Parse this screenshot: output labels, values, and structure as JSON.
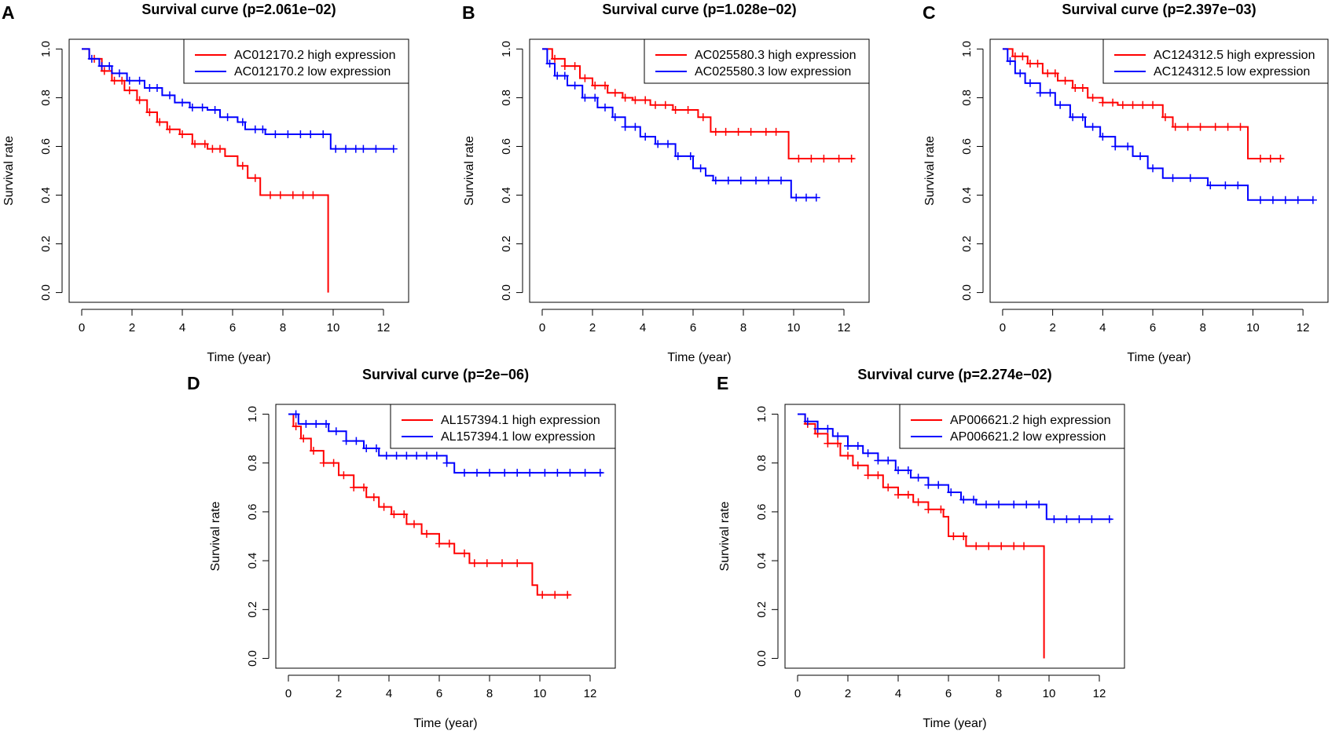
{
  "figure": {
    "colors": {
      "high": "#ff0000",
      "low": "#0000ff",
      "axis": "#000000"
    }
  },
  "chart_data": [
    {
      "type": "line",
      "panel": "A",
      "title": "Survival curve (p=2.061e−02)",
      "xlabel": "Time (year)",
      "ylabel": "Survival rate",
      "xlim": [
        0,
        12.5
      ],
      "ylim": [
        0,
        1
      ],
      "xticks": [
        0,
        2,
        4,
        6,
        8,
        10,
        12
      ],
      "yticks": [
        0.0,
        0.2,
        0.4,
        0.6,
        0.8,
        1.0
      ],
      "xtick_labels": [
        "0",
        "2",
        "4",
        "6",
        "8",
        "10",
        "12"
      ],
      "ytick_labels": [
        "0.0",
        "0.2",
        "0.4",
        "0.6",
        "0.8",
        "1.0"
      ],
      "legend": "top-right",
      "series": [
        {
          "name": "AC012170.2 high expression",
          "color": "#ff0000",
          "x": [
            0,
            0.3,
            0.8,
            1.2,
            1.7,
            2.2,
            2.6,
            3.0,
            3.4,
            3.9,
            4.4,
            5.0,
            5.7,
            6.2,
            6.6,
            7.1,
            9.8,
            9.8
          ],
          "y": [
            1.0,
            0.96,
            0.91,
            0.87,
            0.83,
            0.79,
            0.74,
            0.7,
            0.67,
            0.65,
            0.61,
            0.59,
            0.56,
            0.52,
            0.47,
            0.4,
            0.4,
            0.0
          ],
          "end": 9.8,
          "censor_x": [
            0.5,
            0.9,
            1.3,
            1.6,
            1.9,
            2.3,
            2.7,
            3.1,
            3.5,
            4.0,
            4.5,
            4.9,
            5.2,
            5.5,
            6.4,
            6.9,
            7.5,
            7.9,
            8.4,
            8.8,
            9.2
          ]
        },
        {
          "name": "AC012170.2 low expression",
          "color": "#0000ff",
          "x": [
            0,
            0.3,
            0.7,
            1.2,
            1.8,
            2.5,
            3.2,
            3.7,
            4.3,
            5.0,
            5.5,
            6.2,
            6.5,
            7.3,
            9.9
          ],
          "y": [
            1.0,
            0.96,
            0.93,
            0.9,
            0.87,
            0.84,
            0.81,
            0.78,
            0.76,
            0.75,
            0.72,
            0.7,
            0.67,
            0.65,
            0.59
          ],
          "end": 12.4,
          "censor_x": [
            0.4,
            0.8,
            1.1,
            1.5,
            1.9,
            2.3,
            2.7,
            3.0,
            3.5,
            4.0,
            4.4,
            4.8,
            5.3,
            5.8,
            6.4,
            6.9,
            7.2,
            7.7,
            8.2,
            8.7,
            9.1,
            9.6,
            10.1,
            10.5,
            10.9,
            11.2,
            11.7,
            12.4
          ]
        }
      ]
    },
    {
      "type": "line",
      "panel": "B",
      "title": "Survival curve (p=1.028e−02)",
      "xlabel": "Time (year)",
      "ylabel": "Survival rate",
      "xlim": [
        0,
        12.5
      ],
      "ylim": [
        0,
        1
      ],
      "xticks": [
        0,
        2,
        4,
        6,
        8,
        10,
        12
      ],
      "yticks": [
        0.0,
        0.2,
        0.4,
        0.6,
        0.8,
        1.0
      ],
      "xtick_labels": [
        "0",
        "2",
        "4",
        "6",
        "8",
        "10",
        "12"
      ],
      "ytick_labels": [
        "0.0",
        "0.2",
        "0.4",
        "0.6",
        "0.8",
        "1.0"
      ],
      "legend": "top-right",
      "series": [
        {
          "name": "AC025580.3 high expression",
          "color": "#ff0000",
          "x": [
            0,
            0.4,
            0.9,
            1.5,
            2.0,
            2.6,
            3.2,
            3.6,
            4.3,
            5.2,
            6.2,
            6.7,
            9.8
          ],
          "y": [
            1.0,
            0.96,
            0.93,
            0.88,
            0.85,
            0.82,
            0.8,
            0.79,
            0.77,
            0.75,
            0.72,
            0.66,
            0.55
          ],
          "end": 12.4,
          "censor_x": [
            0.5,
            0.9,
            1.3,
            1.7,
            2.1,
            2.5,
            2.9,
            3.3,
            3.7,
            4.1,
            4.5,
            4.9,
            5.3,
            5.8,
            6.4,
            6.9,
            7.3,
            7.8,
            8.3,
            8.9,
            9.3,
            10.2,
            10.7,
            11.2,
            11.8,
            12.3
          ]
        },
        {
          "name": "AC025580.3 low expression",
          "color": "#0000ff",
          "x": [
            0,
            0.2,
            0.5,
            1.0,
            1.6,
            2.2,
            2.8,
            3.3,
            3.9,
            4.5,
            5.3,
            6.0,
            6.5,
            6.8,
            9.9
          ],
          "y": [
            1.0,
            0.94,
            0.89,
            0.85,
            0.8,
            0.76,
            0.72,
            0.68,
            0.64,
            0.61,
            0.56,
            0.51,
            0.48,
            0.46,
            0.39
          ],
          "end": 10.9,
          "censor_x": [
            0.3,
            0.6,
            0.9,
            1.3,
            1.7,
            2.1,
            2.5,
            2.9,
            3.3,
            3.7,
            4.1,
            4.6,
            5.0,
            5.4,
            5.9,
            6.3,
            6.9,
            7.4,
            7.9,
            8.5,
            9.0,
            9.5,
            10.1,
            10.5,
            10.9
          ]
        }
      ]
    },
    {
      "type": "line",
      "panel": "C",
      "title": "Survival curve (p=2.397e−03)",
      "xlabel": "Time (year)",
      "ylabel": "Survival rate",
      "xlim": [
        0,
        12.5
      ],
      "ylim": [
        0,
        1
      ],
      "xticks": [
        0,
        2,
        4,
        6,
        8,
        10,
        12
      ],
      "yticks": [
        0.0,
        0.2,
        0.4,
        0.6,
        0.8,
        1.0
      ],
      "xtick_labels": [
        "0",
        "2",
        "4",
        "6",
        "8",
        "10",
        "12"
      ],
      "ytick_labels": [
        "0.0",
        "0.2",
        "0.4",
        "0.6",
        "0.8",
        "1.0"
      ],
      "legend": "top-right",
      "series": [
        {
          "name": "AC124312.5 high expression",
          "color": "#ff0000",
          "x": [
            0,
            0.4,
            1.0,
            1.6,
            2.2,
            2.8,
            3.4,
            4.0,
            4.6,
            6.4,
            6.8,
            9.8
          ],
          "y": [
            1.0,
            0.97,
            0.94,
            0.9,
            0.87,
            0.84,
            0.8,
            0.78,
            0.77,
            0.72,
            0.68,
            0.55
          ],
          "end": 11.2,
          "censor_x": [
            0.5,
            0.8,
            1.1,
            1.4,
            1.8,
            2.1,
            2.5,
            2.9,
            3.2,
            3.6,
            4.0,
            4.4,
            4.8,
            5.2,
            5.6,
            6.0,
            6.5,
            6.9,
            7.4,
            7.9,
            8.5,
            9.0,
            9.5,
            10.3,
            10.7,
            11.1
          ]
        },
        {
          "name": "AC124312.5 low expression",
          "color": "#0000ff",
          "x": [
            0,
            0.2,
            0.5,
            0.9,
            1.5,
            2.1,
            2.7,
            3.3,
            3.9,
            4.5,
            5.2,
            5.8,
            6.4,
            8.2,
            9.8
          ],
          "y": [
            1.0,
            0.95,
            0.9,
            0.86,
            0.82,
            0.77,
            0.72,
            0.68,
            0.64,
            0.6,
            0.56,
            0.51,
            0.47,
            0.44,
            0.38
          ],
          "end": 12.4,
          "censor_x": [
            0.3,
            0.7,
            1.1,
            1.5,
            1.9,
            2.3,
            2.8,
            3.2,
            3.6,
            4.0,
            4.5,
            5.0,
            5.5,
            6.0,
            6.8,
            7.5,
            8.3,
            8.9,
            9.4,
            10.3,
            10.8,
            11.3,
            11.8,
            12.4
          ]
        }
      ]
    },
    {
      "type": "line",
      "panel": "D",
      "title": "Survival curve (p=2e−06)",
      "xlabel": "Time (year)",
      "ylabel": "Survival rate",
      "xlim": [
        0,
        12.5
      ],
      "ylim": [
        0,
        1
      ],
      "xticks": [
        0,
        2,
        4,
        6,
        8,
        10,
        12
      ],
      "yticks": [
        0.0,
        0.2,
        0.4,
        0.6,
        0.8,
        1.0
      ],
      "xtick_labels": [
        "0",
        "2",
        "4",
        "6",
        "8",
        "10",
        "12"
      ],
      "ytick_labels": [
        "0.0",
        "0.2",
        "0.4",
        "0.6",
        "0.8",
        "1.0"
      ],
      "legend": "top-right",
      "series": [
        {
          "name": "AL157394.1 high expression",
          "color": "#ff0000",
          "x": [
            0,
            0.2,
            0.5,
            0.9,
            1.4,
            2.0,
            2.6,
            3.1,
            3.6,
            4.1,
            4.7,
            5.3,
            6.0,
            6.6,
            7.2,
            9.7,
            9.9
          ],
          "y": [
            1.0,
            0.95,
            0.9,
            0.85,
            0.8,
            0.75,
            0.7,
            0.66,
            0.62,
            0.59,
            0.55,
            0.51,
            0.47,
            0.43,
            0.39,
            0.3,
            0.26
          ],
          "end": 11.2,
          "censor_x": [
            0.3,
            0.6,
            1.0,
            1.4,
            1.8,
            2.2,
            2.6,
            3.0,
            3.4,
            3.8,
            4.2,
            4.6,
            5.0,
            5.5,
            6.0,
            6.4,
            7.0,
            7.4,
            7.9,
            8.5,
            9.1,
            10.1,
            10.6,
            11.1
          ]
        },
        {
          "name": "AL157394.1 low expression",
          "color": "#0000ff",
          "x": [
            0,
            0.4,
            1.6,
            2.3,
            3.0,
            3.6,
            6.3,
            6.6
          ],
          "y": [
            1.0,
            0.96,
            0.93,
            0.89,
            0.86,
            0.83,
            0.8,
            0.76
          ],
          "end": 12.5,
          "censor_x": [
            0.3,
            0.7,
            1.1,
            1.5,
            1.9,
            2.3,
            2.7,
            3.1,
            3.5,
            3.9,
            4.3,
            4.7,
            5.1,
            5.5,
            5.9,
            6.3,
            7.0,
            7.5,
            8.0,
            8.6,
            9.1,
            9.6,
            10.2,
            10.7,
            11.2,
            11.8,
            12.4
          ]
        }
      ]
    },
    {
      "type": "line",
      "panel": "E",
      "title": "Survival curve (p=2.274e−02)",
      "xlabel": "Time (year)",
      "ylabel": "Survival rate",
      "xlim": [
        0,
        12.5
      ],
      "ylim": [
        0,
        1
      ],
      "xticks": [
        0,
        2,
        4,
        6,
        8,
        10,
        12
      ],
      "yticks": [
        0.0,
        0.2,
        0.4,
        0.6,
        0.8,
        1.0
      ],
      "xtick_labels": [
        "0",
        "2",
        "4",
        "6",
        "8",
        "10",
        "12"
      ],
      "ytick_labels": [
        "0.0",
        "0.2",
        "0.4",
        "0.6",
        "0.8",
        "1.0"
      ],
      "legend": "top-right",
      "series": [
        {
          "name": "AP006621.2 high expression",
          "color": "#ff0000",
          "x": [
            0,
            0.3,
            0.7,
            1.2,
            1.7,
            2.2,
            2.8,
            3.4,
            4.0,
            4.6,
            5.2,
            5.8,
            6.0,
            6.7,
            9.8,
            9.8
          ],
          "y": [
            1.0,
            0.96,
            0.92,
            0.88,
            0.83,
            0.79,
            0.75,
            0.7,
            0.67,
            0.64,
            0.61,
            0.58,
            0.5,
            0.46,
            0.46,
            0.0
          ],
          "end": 9.8,
          "censor_x": [
            0.4,
            0.8,
            1.2,
            1.6,
            2.0,
            2.4,
            2.8,
            3.2,
            3.6,
            4.0,
            4.4,
            4.8,
            5.2,
            5.7,
            6.2,
            6.6,
            7.1,
            7.6,
            8.1,
            8.6,
            9.0
          ]
        },
        {
          "name": "AP006621.2 low expression",
          "color": "#0000ff",
          "x": [
            0,
            0.3,
            0.8,
            1.4,
            2.0,
            2.6,
            3.2,
            3.9,
            4.5,
            5.2,
            6.0,
            6.5,
            7.1,
            9.9
          ],
          "y": [
            1.0,
            0.97,
            0.94,
            0.91,
            0.87,
            0.84,
            0.81,
            0.77,
            0.74,
            0.71,
            0.68,
            0.65,
            0.63,
            0.57
          ],
          "end": 12.5,
          "censor_x": [
            0.4,
            0.8,
            1.2,
            1.6,
            2.0,
            2.4,
            2.8,
            3.2,
            3.6,
            4.0,
            4.4,
            4.8,
            5.2,
            5.6,
            6.1,
            6.6,
            7.0,
            7.5,
            8.0,
            8.6,
            9.1,
            9.6,
            10.2,
            10.7,
            11.2,
            11.7,
            12.4
          ]
        }
      ]
    }
  ]
}
